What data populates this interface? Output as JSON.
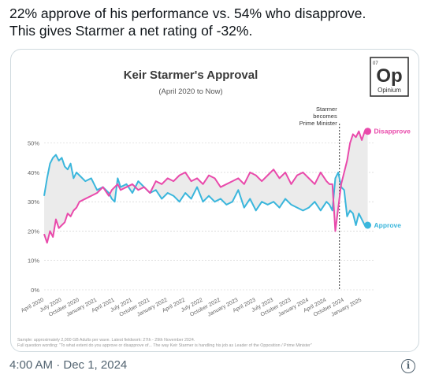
{
  "tweet": {
    "text_line1": "22% approve of his performance vs. 54% who disapprove.",
    "text_line2": "This gives Starmer a net rating of -32%.",
    "timestamp": "4:00 AM · Dec 1, 2024",
    "info_icon": "i"
  },
  "logo": {
    "small": "07",
    "big": "Op",
    "name": "Opinium"
  },
  "chart_data": {
    "type": "line",
    "title": "Keir Starmer's Approval",
    "subtitle": "(April 2020 to Now)",
    "ylim": [
      0,
      55
    ],
    "yticks": [
      0,
      10,
      20,
      30,
      40,
      50
    ],
    "ytick_labels": [
      "0%",
      "10%",
      "20%",
      "30%",
      "40%",
      "50%"
    ],
    "xlim": [
      0,
      56
    ],
    "xtick_pos": [
      0,
      3,
      6,
      9,
      12,
      15,
      18,
      21,
      24,
      27,
      30,
      33,
      36,
      39,
      42,
      45,
      48,
      51,
      54
    ],
    "xtick_labels": [
      "April 2020",
      "July 2020",
      "October 2020",
      "January 2021",
      "April 2021",
      "July 2021",
      "October 2021",
      "January 2022",
      "April 2022",
      "July 2022",
      "October 2022",
      "January 2023",
      "April 2023",
      "July 2023",
      "October 2023",
      "January 2024",
      "April 2024",
      "October 2024",
      "January 2025"
    ],
    "annotation": {
      "x": 50.2,
      "lines": [
        "Starmer",
        "becomes",
        "Prime Minister"
      ]
    },
    "series": [
      {
        "name": "Approve",
        "color": "#3ab6dc",
        "end_value": 22,
        "x": [
          0,
          0.5,
          1,
          1.5,
          2,
          2.5,
          3,
          3.5,
          4,
          4.5,
          5,
          5.5,
          6,
          7,
          8,
          9,
          10,
          11,
          11.5,
          12,
          12.5,
          13,
          14,
          15,
          16,
          17,
          18,
          19,
          20,
          21,
          22,
          23,
          24,
          25,
          26,
          27,
          28,
          29,
          30,
          31,
          32,
          33,
          34,
          35,
          36,
          37,
          38,
          39,
          40,
          41,
          42,
          43,
          44,
          45,
          46,
          47,
          48,
          48.5,
          49,
          49.5,
          50,
          50.5,
          51,
          51.5,
          52,
          52.5,
          53,
          53.5,
          54,
          54.5,
          55
        ],
        "y": [
          32,
          38,
          43,
          45,
          46,
          44,
          45,
          42,
          41,
          43,
          38,
          40,
          39,
          37,
          38,
          34,
          35,
          33,
          31,
          30,
          38,
          35,
          36,
          33,
          37,
          35,
          33,
          34,
          31,
          33,
          32,
          30,
          33,
          31,
          35,
          30,
          32,
          30,
          31,
          29,
          30,
          34,
          28,
          31,
          27,
          30,
          29,
          30,
          28,
          31,
          29,
          28,
          27,
          28,
          30,
          27,
          30,
          29,
          27,
          38,
          40,
          35,
          34,
          25,
          27,
          26,
          22,
          26,
          24,
          22,
          22
        ]
      },
      {
        "name": "Disapprove",
        "color": "#e94aab",
        "end_value": 54,
        "x": [
          0,
          0.5,
          1,
          1.5,
          2,
          2.5,
          3,
          3.5,
          4,
          4.5,
          5,
          5.5,
          6,
          7,
          8,
          9,
          10,
          11,
          11.5,
          12,
          12.5,
          13,
          14,
          15,
          16,
          17,
          18,
          19,
          20,
          21,
          22,
          23,
          24,
          25,
          26,
          27,
          28,
          29,
          30,
          31,
          32,
          33,
          34,
          35,
          36,
          37,
          38,
          39,
          40,
          41,
          42,
          43,
          44,
          45,
          46,
          47,
          48,
          48.5,
          49,
          49.5,
          50,
          50.5,
          51,
          51.5,
          52,
          52.5,
          53,
          53.5,
          54,
          54.5,
          55
        ],
        "y": [
          19,
          16,
          20,
          18,
          24,
          21,
          22,
          23,
          26,
          25,
          27,
          28,
          30,
          31,
          32,
          33,
          35,
          32,
          34,
          35,
          36,
          34,
          35,
          36,
          34,
          35,
          33,
          37,
          36,
          38,
          37,
          39,
          40,
          37,
          38,
          36,
          39,
          38,
          35,
          36,
          37,
          38,
          36,
          40,
          39,
          37,
          39,
          41,
          38,
          40,
          36,
          39,
          40,
          38,
          36,
          40,
          37,
          36,
          36,
          20,
          28,
          36,
          40,
          44,
          50,
          53,
          52,
          54,
          51,
          54,
          54
        ]
      }
    ],
    "footnote_line1": "Sample: approximately 2,000 GB Adults per wave. Latest fieldwork: 27th - 29th November 2024.",
    "footnote_line2": "Full question wording: \"To what extent do you approve or disapprove of... The way Keir Starmer is handling his job as Leader of the Opposition / Prime Minister\""
  }
}
